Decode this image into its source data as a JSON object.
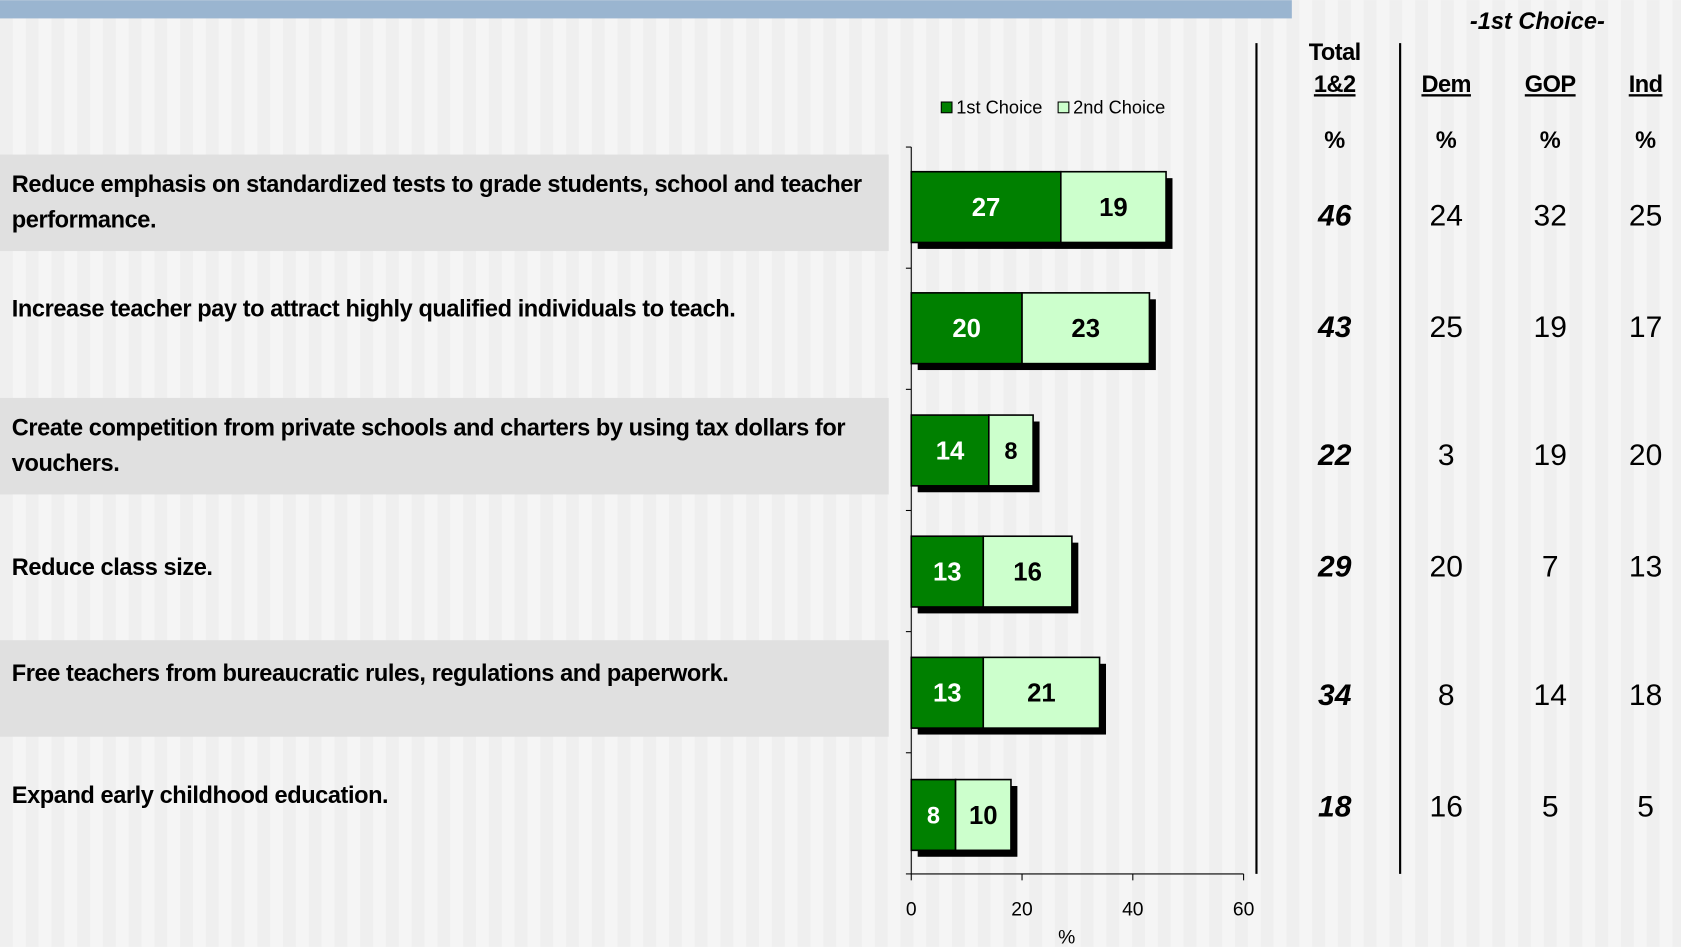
{
  "chart_data": {
    "type": "stacked-barh",
    "categories": [
      "Reduce emphasis on standardized tests to grade students, school and teacher performance.",
      "Increase teacher pay to attract highly qualified individuals to teach.",
      "Create competition from private schools and charters by using tax dollars for vouchers.",
      "Reduce class size.",
      "Free teachers from bureaucratic rules, regulations and paperwork.",
      "Expand early childhood education."
    ],
    "series": [
      {
        "name": "1st Choice",
        "color": "#008000",
        "label_color": "#ffffff",
        "values": [
          27,
          20,
          14,
          13,
          13,
          8
        ]
      },
      {
        "name": "2nd Choice",
        "color": "#ccffcc",
        "label_color": "#000000",
        "values": [
          19,
          23,
          8,
          16,
          21,
          10
        ]
      }
    ],
    "xlim": [
      0,
      60
    ],
    "xticks": [
      0,
      20,
      40,
      60
    ],
    "xlabel": "%"
  },
  "table": {
    "title": "-1st Choice-",
    "columns": [
      {
        "header": [
          "Total",
          "1&2"
        ],
        "unit": "%",
        "values": [
          46,
          43,
          22,
          29,
          34,
          18
        ]
      },
      {
        "header": [
          "Dem"
        ],
        "unit": "%",
        "values": [
          24,
          25,
          3,
          20,
          8,
          16
        ]
      },
      {
        "header": [
          "GOP"
        ],
        "unit": "%",
        "values": [
          32,
          19,
          19,
          7,
          14,
          5
        ]
      },
      {
        "header": [
          "Ind"
        ],
        "unit": "%",
        "values": [
          25,
          17,
          20,
          13,
          18,
          5
        ]
      }
    ]
  }
}
